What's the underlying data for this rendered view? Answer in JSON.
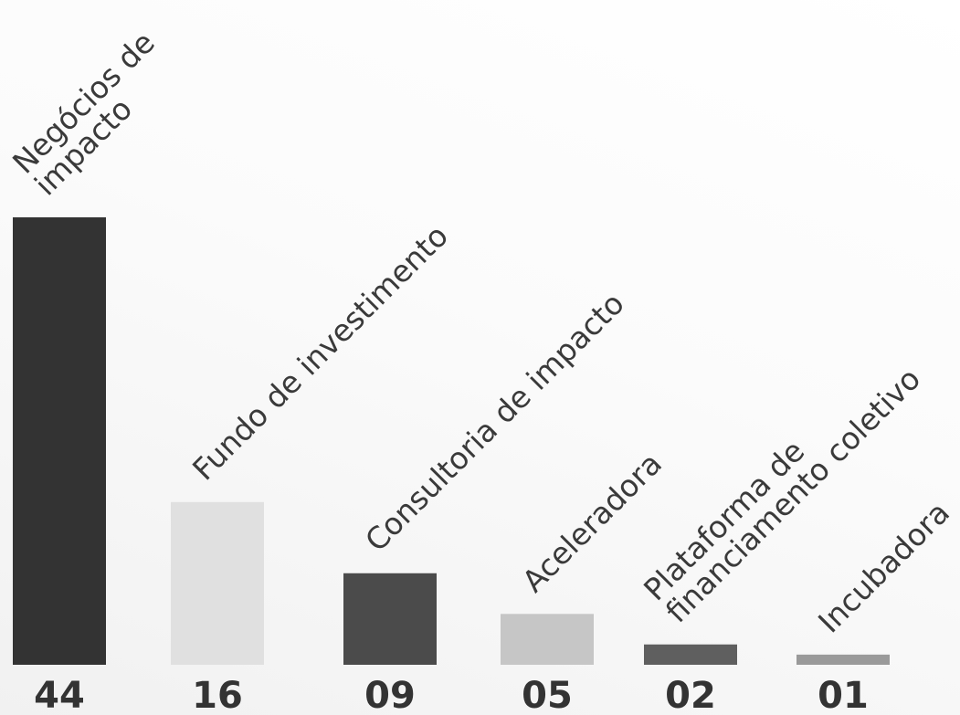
{
  "chart_data": {
    "type": "bar",
    "categories": [
      [
        "Negócios de",
        "impacto"
      ],
      [
        "Fundo de investimento"
      ],
      [
        "Consultoria de impacto"
      ],
      [
        "Aceleradora"
      ],
      [
        "Plataforma de",
        "financiamento coletivo"
      ],
      [
        "Incubadora"
      ]
    ],
    "values": [
      44,
      16,
      9,
      5,
      2,
      1
    ],
    "value_labels": [
      "44",
      "16",
      "09",
      "05",
      "02",
      "01"
    ],
    "bar_colors": [
      "#333333",
      "#e0e0e0",
      "#4b4b4b",
      "#c6c6c6",
      "#5f5f5f",
      "#9a9a9a"
    ],
    "ylim": [
      0,
      44
    ],
    "grid": false,
    "legend": "none"
  }
}
